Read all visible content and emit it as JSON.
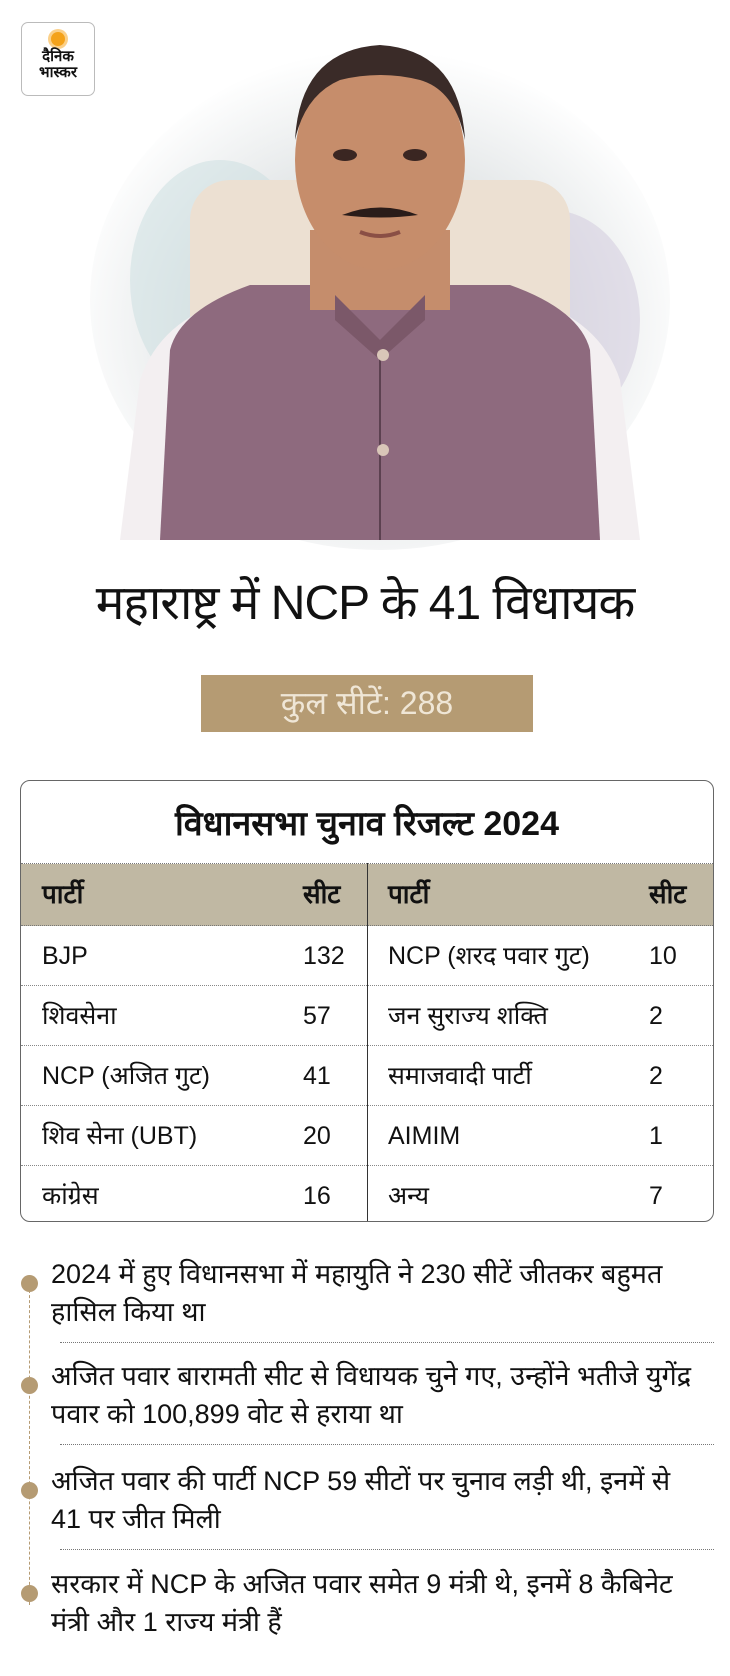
{
  "brand": {
    "logo_text_line1": "दैनिक",
    "logo_text_line2": "भास्कर",
    "accent": "#b59b73",
    "header_bg": "#c0b8a3"
  },
  "headline": "महाराष्ट्र में NCP के 41 विधायक",
  "total_seats_badge": "कुल सीटें: 288",
  "table": {
    "title": "विधानसभा चुनाव रिजल्ट 2024",
    "headers": [
      "पार्टी",
      "सीट",
      "पार्टी",
      "सीट"
    ],
    "rows": [
      {
        "party_left": "BJP",
        "seats_left": "132",
        "party_right": "NCP (शरद पवार गुट)",
        "seats_right": "10"
      },
      {
        "party_left": "शिवसेना",
        "seats_left": "57",
        "party_right": "जन सुराज्य शक्ति",
        "seats_right": "2"
      },
      {
        "party_left": "NCP (अजित गुट)",
        "seats_left": "41",
        "party_right": "समाजवादी पार्टी",
        "seats_right": "2"
      },
      {
        "party_left": "शिव सेना (UBT)",
        "seats_left": "20",
        "party_right": "AIMIM",
        "seats_right": "1"
      },
      {
        "party_left": "कांग्रेस",
        "seats_left": "16",
        "party_right": "अन्य",
        "seats_right": "7"
      }
    ]
  },
  "bullets": [
    "2024 में हुए विधानसभा में महायुति ने 230 सीटें जीतकर बहुमत हासिल किया था",
    "अजित पवार बारामती सीट से विधायक चुने गए, उन्होंने भतीजे युगेंद्र पवार को 100,899 वोट से हराया था",
    "अजित पवार की पार्टी NCP 59 सीटों पर चुनाव लड़ी थी, इनमें से 41 पर जीत मिली",
    "सरकार में NCP के अजित पवार समेत 9 मंत्री थे, इनमें 8 कैबिनेट मंत्री और 1 राज्य मंत्री हैं"
  ]
}
